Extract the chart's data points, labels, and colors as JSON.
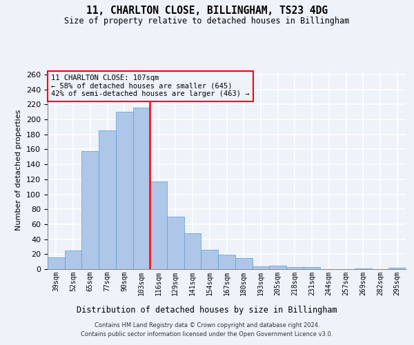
{
  "title": "11, CHARLTON CLOSE, BILLINGHAM, TS23 4DG",
  "subtitle": "Size of property relative to detached houses in Billingham",
  "xlabel": "Distribution of detached houses by size in Billingham",
  "ylabel": "Number of detached properties",
  "categories": [
    "39sqm",
    "52sqm",
    "65sqm",
    "77sqm",
    "90sqm",
    "103sqm",
    "116sqm",
    "129sqm",
    "141sqm",
    "154sqm",
    "167sqm",
    "180sqm",
    "193sqm",
    "205sqm",
    "218sqm",
    "231sqm",
    "244sqm",
    "257sqm",
    "269sqm",
    "282sqm",
    "295sqm"
  ],
  "values": [
    16,
    25,
    158,
    185,
    210,
    216,
    117,
    70,
    48,
    26,
    19,
    15,
    4,
    5,
    3,
    3,
    0,
    0,
    1,
    0,
    2
  ],
  "bar_color": "#aec6e8",
  "bar_edgecolor": "#5a9fd4",
  "vline_color": "red",
  "vline_pos": 5.5,
  "annotation_line1": "11 CHARLTON CLOSE: 107sqm",
  "annotation_line2": "← 58% of detached houses are smaller (645)",
  "annotation_line3": "42% of semi-detached houses are larger (463) →",
  "box_edgecolor": "red",
  "ylim": [
    0,
    265
  ],
  "yticks": [
    0,
    20,
    40,
    60,
    80,
    100,
    120,
    140,
    160,
    180,
    200,
    220,
    240,
    260
  ],
  "footer1": "Contains HM Land Registry data © Crown copyright and database right 2024.",
  "footer2": "Contains public sector information licensed under the Open Government Licence v3.0.",
  "background_color": "#eef2f9",
  "grid_color": "#ffffff"
}
